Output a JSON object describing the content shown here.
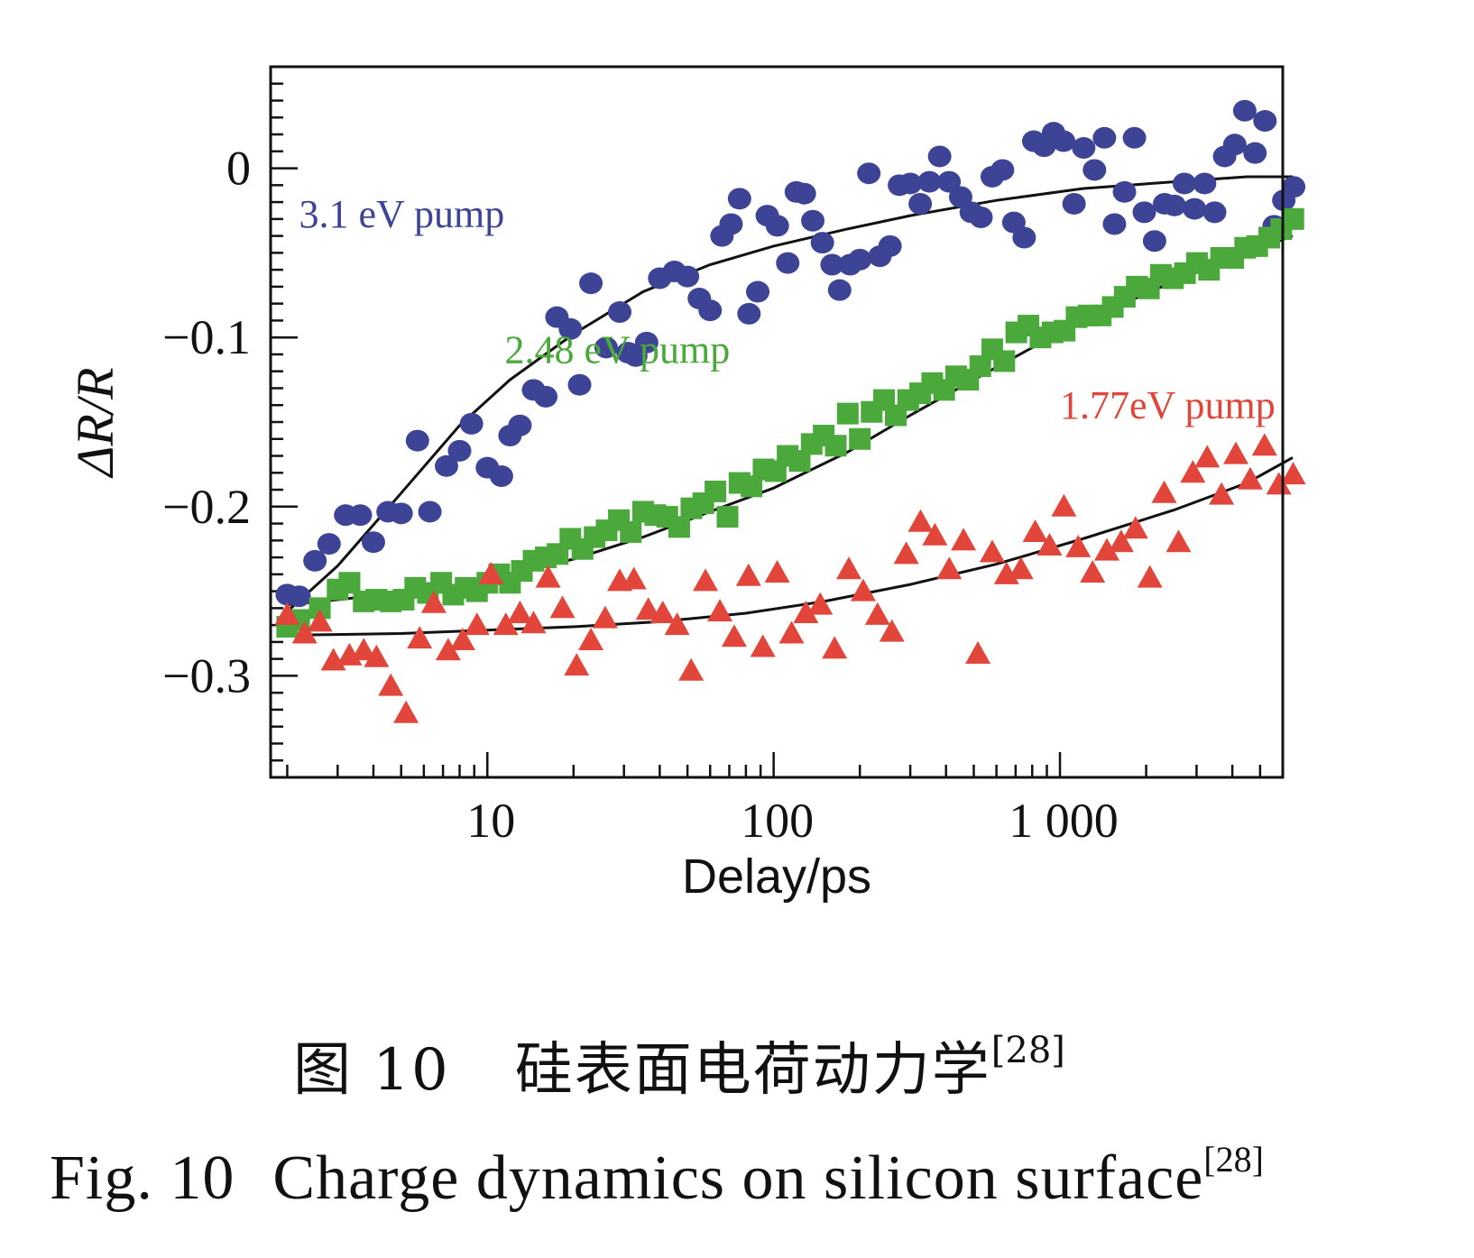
{
  "chart_data": {
    "type": "scatter",
    "xlabel": "Delay/ps",
    "ylabel": "ΔR/R",
    "xscale": "log",
    "xlim": [
      1.75,
      6000
    ],
    "ylim": [
      -0.36,
      0.06
    ],
    "x_tick_labels": [
      {
        "value": 10,
        "label": "10"
      },
      {
        "value": 100,
        "label": "100"
      },
      {
        "value": 1000,
        "label": "1 000"
      }
    ],
    "y_tick_labels": [
      {
        "value": 0,
        "label": "0"
      },
      {
        "value": -0.1,
        "label": "−0.1"
      },
      {
        "value": -0.2,
        "label": "−0.2"
      },
      {
        "value": -0.3,
        "label": "−0.3"
      }
    ],
    "series": [
      {
        "name": "3.1 eV pump",
        "marker": "circle",
        "color": "#3d4496",
        "label_at": [
          2.2,
          -0.035
        ],
        "points": [
          [
            2.0,
            -0.252
          ],
          [
            2.2,
            -0.253
          ],
          [
            2.5,
            -0.232
          ],
          [
            2.8,
            -0.222
          ],
          [
            3.2,
            -0.205
          ],
          [
            3.6,
            -0.205
          ],
          [
            4.0,
            -0.221
          ],
          [
            4.5,
            -0.203
          ],
          [
            5.0,
            -0.204
          ],
          [
            5.7,
            -0.161
          ],
          [
            6.3,
            -0.203
          ],
          [
            7.2,
            -0.176
          ],
          [
            8.0,
            -0.167
          ],
          [
            8.8,
            -0.151
          ],
          [
            10.0,
            -0.177
          ],
          [
            11.2,
            -0.182
          ],
          [
            12.0,
            -0.158
          ],
          [
            13.0,
            -0.152
          ],
          [
            14.5,
            -0.131
          ],
          [
            16.0,
            -0.135
          ],
          [
            17.5,
            -0.088
          ],
          [
            19.5,
            -0.095
          ],
          [
            21.0,
            -0.128
          ],
          [
            23.0,
            -0.068
          ],
          [
            26.0,
            -0.106
          ],
          [
            29.0,
            -0.085
          ],
          [
            31.0,
            -0.109
          ],
          [
            33.0,
            -0.111
          ],
          [
            36.0,
            -0.103
          ],
          [
            40.0,
            -0.065
          ],
          [
            45.0,
            -0.061
          ],
          [
            50.0,
            -0.064
          ],
          [
            55.0,
            -0.077
          ],
          [
            60.0,
            -0.084
          ],
          [
            66.0,
            -0.04
          ],
          [
            71.0,
            -0.033
          ],
          [
            76.0,
            -0.018
          ],
          [
            82.0,
            -0.086
          ],
          [
            88.0,
            -0.073
          ],
          [
            95.0,
            -0.028
          ],
          [
            103.0,
            -0.034
          ],
          [
            112.0,
            -0.056
          ],
          [
            120.0,
            -0.014
          ],
          [
            128.0,
            -0.015
          ],
          [
            137.0,
            -0.031
          ],
          [
            148.0,
            -0.044
          ],
          [
            160.0,
            -0.057
          ],
          [
            170.0,
            -0.072
          ],
          [
            185.0,
            -0.057
          ],
          [
            200.0,
            -0.054
          ],
          [
            215.0,
            -0.003
          ],
          [
            235.0,
            -0.052
          ],
          [
            255.0,
            -0.046
          ],
          [
            275.0,
            -0.01
          ],
          [
            300.0,
            -0.009
          ],
          [
            325.0,
            -0.021
          ],
          [
            350.0,
            -0.008
          ],
          [
            380.0,
            0.007
          ],
          [
            410.0,
            -0.008
          ],
          [
            450.0,
            -0.017
          ],
          [
            490.0,
            -0.026
          ],
          [
            530.0,
            -0.029
          ],
          [
            580.0,
            -0.005
          ],
          [
            630.0,
            -0.001
          ],
          [
            690.0,
            -0.032
          ],
          [
            750.0,
            -0.041
          ],
          [
            810.0,
            0.016
          ],
          [
            880.0,
            0.013
          ],
          [
            950.0,
            0.021
          ],
          [
            1030.0,
            0.016
          ],
          [
            1120.0,
            -0.021
          ],
          [
            1210.0,
            0.012
          ],
          [
            1320.0,
            -0.001
          ],
          [
            1430.0,
            0.018
          ],
          [
            1550.0,
            -0.033
          ],
          [
            1680.0,
            -0.014
          ],
          [
            1820.0,
            0.018
          ],
          [
            1970.0,
            -0.026
          ],
          [
            2140.0,
            -0.043
          ],
          [
            2320.0,
            -0.021
          ],
          [
            2510.0,
            -0.022
          ],
          [
            2720.0,
            -0.009
          ],
          [
            2950.0,
            -0.024
          ],
          [
            3200.0,
            -0.009
          ],
          [
            3470.0,
            -0.026
          ],
          [
            3760.0,
            0.007
          ],
          [
            4080.0,
            0.014
          ],
          [
            4420.0,
            0.034
          ],
          [
            4800.0,
            0.009
          ],
          [
            5200.0,
            0.028
          ],
          [
            5600.0,
            -0.034
          ],
          [
            6050.0,
            -0.019
          ],
          [
            6550.0,
            -0.011
          ]
        ],
        "fit": [
          [
            2.0,
            -0.262
          ],
          [
            3.0,
            -0.235
          ],
          [
            5.0,
            -0.192
          ],
          [
            8.0,
            -0.152
          ],
          [
            12.0,
            -0.125
          ],
          [
            20.0,
            -0.098
          ],
          [
            35.0,
            -0.073
          ],
          [
            60.0,
            -0.057
          ],
          [
            100.0,
            -0.046
          ],
          [
            180.0,
            -0.036
          ],
          [
            300.0,
            -0.028
          ],
          [
            600.0,
            -0.019
          ],
          [
            1200.0,
            -0.012
          ],
          [
            2500.0,
            -0.008
          ],
          [
            4500.0,
            -0.005
          ],
          [
            6500.0,
            -0.005
          ]
        ]
      },
      {
        "name": "2.48 eV pump",
        "marker": "square",
        "color": "#4ba83a",
        "label_at": [
          11.5,
          -0.115
        ],
        "points": [
          [
            2.0,
            -0.271
          ],
          [
            2.2,
            -0.267
          ],
          [
            2.6,
            -0.26
          ],
          [
            3.0,
            -0.249
          ],
          [
            3.3,
            -0.245
          ],
          [
            3.7,
            -0.256
          ],
          [
            4.1,
            -0.255
          ],
          [
            4.6,
            -0.256
          ],
          [
            5.1,
            -0.255
          ],
          [
            5.6,
            -0.248
          ],
          [
            6.2,
            -0.251
          ],
          [
            6.9,
            -0.245
          ],
          [
            7.6,
            -0.252
          ],
          [
            8.4,
            -0.248
          ],
          [
            9.2,
            -0.25
          ],
          [
            10.0,
            -0.245
          ],
          [
            11.0,
            -0.24
          ],
          [
            12.0,
            -0.245
          ],
          [
            13.2,
            -0.238
          ],
          [
            14.5,
            -0.232
          ],
          [
            16.0,
            -0.23
          ],
          [
            17.6,
            -0.228
          ],
          [
            19.5,
            -0.219
          ],
          [
            21.5,
            -0.225
          ],
          [
            23.7,
            -0.218
          ],
          [
            26.1,
            -0.214
          ],
          [
            28.8,
            -0.208
          ],
          [
            31.7,
            -0.215
          ],
          [
            35.0,
            -0.203
          ],
          [
            38.6,
            -0.205
          ],
          [
            42.5,
            -0.206
          ],
          [
            46.8,
            -0.212
          ],
          [
            51.6,
            -0.201
          ],
          [
            56.8,
            -0.198
          ],
          [
            62.6,
            -0.191
          ],
          [
            69.0,
            -0.206
          ],
          [
            76.0,
            -0.186
          ],
          [
            83.7,
            -0.188
          ],
          [
            92.2,
            -0.178
          ],
          [
            101.6,
            -0.179
          ],
          [
            111.9,
            -0.17
          ],
          [
            123.3,
            -0.173
          ],
          [
            135.8,
            -0.163
          ],
          [
            149.6,
            -0.158
          ],
          [
            164.8,
            -0.164
          ],
          [
            181.5,
            -0.145
          ],
          [
            200.0,
            -0.16
          ],
          [
            220.0,
            -0.144
          ],
          [
            243.0,
            -0.137
          ],
          [
            267.0,
            -0.146
          ],
          [
            295.0,
            -0.137
          ],
          [
            325.0,
            -0.133
          ],
          [
            358.0,
            -0.127
          ],
          [
            394.0,
            -0.131
          ],
          [
            434.0,
            -0.123
          ],
          [
            478.0,
            -0.125
          ],
          [
            527.0,
            -0.117
          ],
          [
            580.0,
            -0.107
          ],
          [
            639.0,
            -0.114
          ],
          [
            704.0,
            -0.097
          ],
          [
            776.0,
            -0.093
          ],
          [
            855.0,
            -0.1
          ],
          [
            942.0,
            -0.097
          ],
          [
            1038.0,
            -0.096
          ],
          [
            1143.0,
            -0.088
          ],
          [
            1260.0,
            -0.087
          ],
          [
            1388.0,
            -0.087
          ],
          [
            1529.0,
            -0.082
          ],
          [
            1684.0,
            -0.076
          ],
          [
            1855.0,
            -0.07
          ],
          [
            2044.0,
            -0.071
          ],
          [
            2252.0,
            -0.063
          ],
          [
            2481.0,
            -0.065
          ],
          [
            2733.0,
            -0.062
          ],
          [
            3011.0,
            -0.056
          ],
          [
            3317.0,
            -0.06
          ],
          [
            3654.0,
            -0.053
          ],
          [
            4026.0,
            -0.053
          ],
          [
            4435.0,
            -0.047
          ],
          [
            4886.0,
            -0.046
          ],
          [
            5383.0,
            -0.041
          ],
          [
            5930.0,
            -0.036
          ],
          [
            6533.0,
            -0.03
          ]
        ],
        "fit": [
          [
            2.0,
            -0.258
          ],
          [
            3.0,
            -0.255
          ],
          [
            5.0,
            -0.251
          ],
          [
            8.0,
            -0.246
          ],
          [
            12.0,
            -0.24
          ],
          [
            20.0,
            -0.231
          ],
          [
            35.0,
            -0.218
          ],
          [
            60.0,
            -0.203
          ],
          [
            100.0,
            -0.189
          ],
          [
            180.0,
            -0.168
          ],
          [
            300.0,
            -0.146
          ],
          [
            500.0,
            -0.125
          ],
          [
            800.0,
            -0.106
          ],
          [
            1300.0,
            -0.088
          ],
          [
            2200.0,
            -0.071
          ],
          [
            3500.0,
            -0.057
          ],
          [
            5000.0,
            -0.047
          ],
          [
            6500.0,
            -0.04
          ]
        ]
      },
      {
        "name": "1.77eV pump",
        "marker": "triangle",
        "color": "#e2463a",
        "label_at": [
          1000,
          -0.148
        ],
        "points": [
          [
            2.0,
            -0.264
          ],
          [
            2.3,
            -0.275
          ],
          [
            2.6,
            -0.268
          ],
          [
            2.9,
            -0.291
          ],
          [
            3.3,
            -0.288
          ],
          [
            3.7,
            -0.285
          ],
          [
            4.1,
            -0.289
          ],
          [
            4.6,
            -0.306
          ],
          [
            5.2,
            -0.322
          ],
          [
            5.8,
            -0.278
          ],
          [
            6.5,
            -0.257
          ],
          [
            7.3,
            -0.285
          ],
          [
            8.2,
            -0.279
          ],
          [
            9.2,
            -0.27
          ],
          [
            10.3,
            -0.24
          ],
          [
            11.6,
            -0.27
          ],
          [
            13.0,
            -0.263
          ],
          [
            14.5,
            -0.269
          ],
          [
            16.3,
            -0.242
          ],
          [
            18.3,
            -0.26
          ],
          [
            20.5,
            -0.294
          ],
          [
            23.0,
            -0.279
          ],
          [
            25.8,
            -0.266
          ],
          [
            29.0,
            -0.244
          ],
          [
            32.5,
            -0.243
          ],
          [
            36.5,
            -0.261
          ],
          [
            41.0,
            -0.263
          ],
          [
            46.0,
            -0.27
          ],
          [
            51.5,
            -0.297
          ],
          [
            57.8,
            -0.244
          ],
          [
            64.9,
            -0.262
          ],
          [
            72.8,
            -0.277
          ],
          [
            81.7,
            -0.241
          ],
          [
            91.7,
            -0.283
          ],
          [
            102.9,
            -0.239
          ],
          [
            115.5,
            -0.275
          ],
          [
            129.6,
            -0.263
          ],
          [
            145.4,
            -0.258
          ],
          [
            163.2,
            -0.284
          ],
          [
            183.1,
            -0.237
          ],
          [
            205.5,
            -0.25
          ],
          [
            230.6,
            -0.264
          ],
          [
            258.8,
            -0.274
          ],
          [
            290.4,
            -0.228
          ],
          [
            325.9,
            -0.209
          ],
          [
            365.7,
            -0.217
          ],
          [
            410.4,
            -0.237
          ],
          [
            460.5,
            -0.22
          ],
          [
            516.8,
            -0.287
          ],
          [
            580.0,
            -0.227
          ],
          [
            650.8,
            -0.24
          ],
          [
            730.3,
            -0.237
          ],
          [
            819.5,
            -0.215
          ],
          [
            919.7,
            -0.223
          ],
          [
            1032.0,
            -0.2
          ],
          [
            1158.0,
            -0.224
          ],
          [
            1300.0,
            -0.239
          ],
          [
            1458.0,
            -0.226
          ],
          [
            1636.0,
            -0.221
          ],
          [
            1836.0,
            -0.213
          ],
          [
            2061.0,
            -0.242
          ],
          [
            2312.0,
            -0.192
          ],
          [
            2595.0,
            -0.221
          ],
          [
            2912.0,
            -0.18
          ],
          [
            3268.0,
            -0.171
          ],
          [
            3667.0,
            -0.193
          ],
          [
            4115.0,
            -0.169
          ],
          [
            4618.0,
            -0.184
          ],
          [
            5182.0,
            -0.164
          ],
          [
            5815.0,
            -0.187
          ],
          [
            6525.0,
            -0.181
          ]
        ],
        "fit": [
          [
            2.0,
            -0.276
          ],
          [
            5.0,
            -0.275
          ],
          [
            10.0,
            -0.273
          ],
          [
            20.0,
            -0.271
          ],
          [
            40.0,
            -0.268
          ],
          [
            80.0,
            -0.263
          ],
          [
            150.0,
            -0.256
          ],
          [
            300.0,
            -0.246
          ],
          [
            600.0,
            -0.234
          ],
          [
            1200.0,
            -0.219
          ],
          [
            2500.0,
            -0.202
          ],
          [
            4500.0,
            -0.186
          ],
          [
            6500.0,
            -0.171
          ]
        ]
      }
    ]
  },
  "caption": {
    "cn_prefix": "图 10",
    "cn_text": "硅表面电荷动力学",
    "en_prefix": "Fig. 10",
    "en_text": "Charge dynamics on silicon surface",
    "citation": "[28]"
  }
}
